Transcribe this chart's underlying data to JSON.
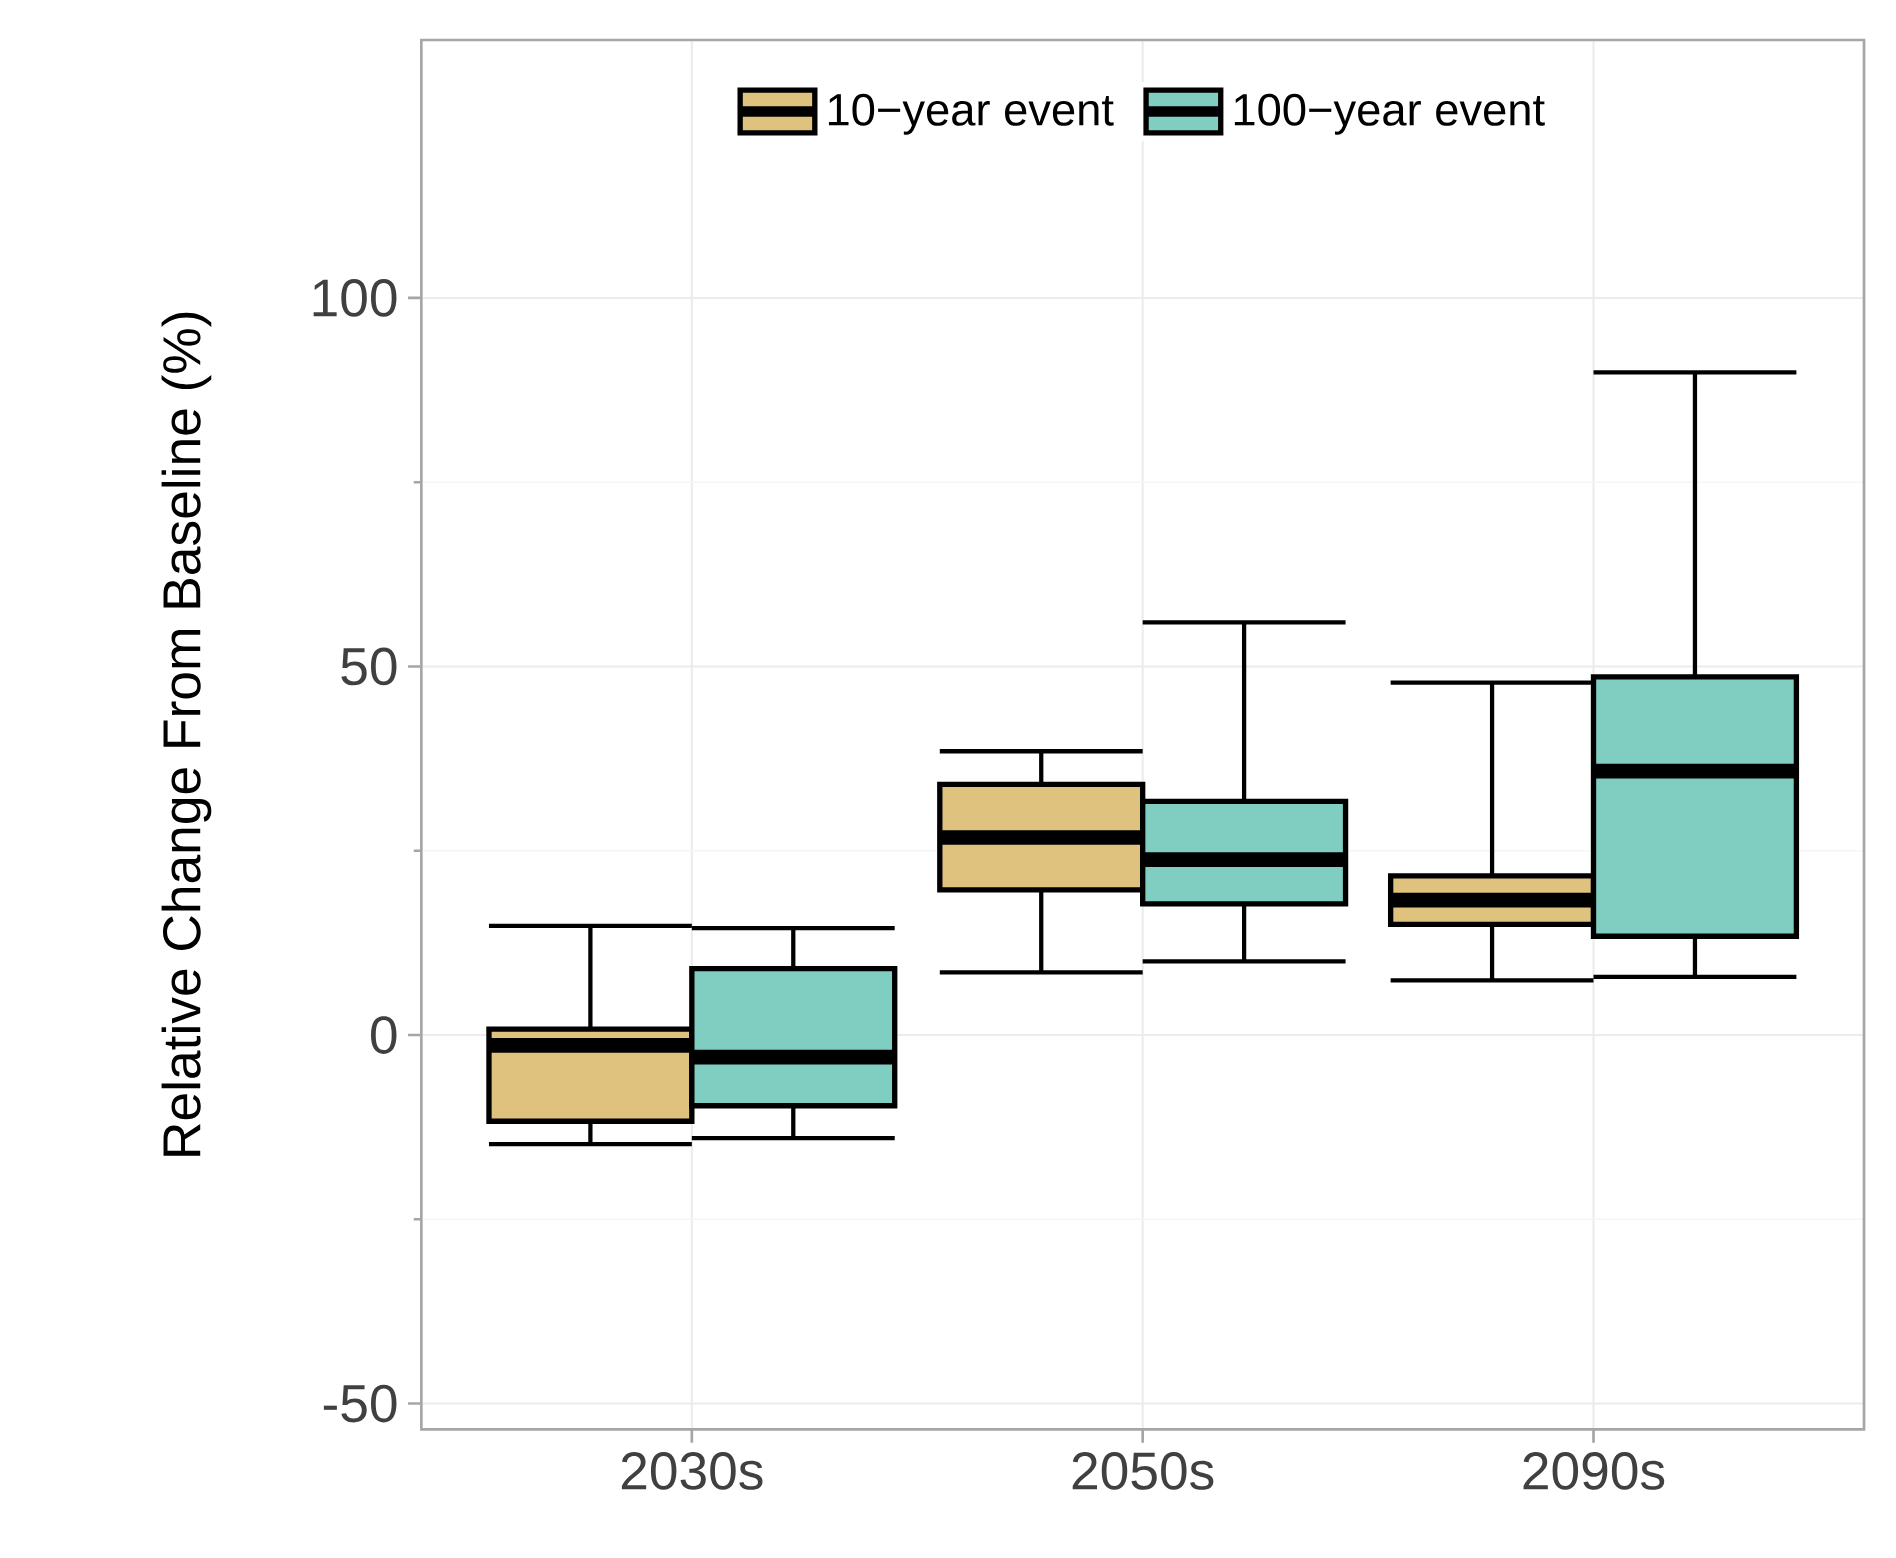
{
  "chart_data": {
    "type": "box",
    "ylabel": "Relative Change From Baseline (%)",
    "categories": [
      "2030s",
      "2050s",
      "2090s"
    ],
    "series": [
      {
        "name": "10−year event",
        "color": "#dfc27d",
        "boxes": [
          {
            "low": -14.8,
            "q1": -11.7,
            "median": -1.4,
            "q3": 0.8,
            "high": 14.8
          },
          {
            "low": 8.5,
            "q1": 19.7,
            "median": 26.8,
            "q3": 34,
            "high": 38.5
          },
          {
            "low": 7.4,
            "q1": 15,
            "median": 18.3,
            "q3": 21.6,
            "high": 47.8
          }
        ]
      },
      {
        "name": "100−year event",
        "color": "#80cdc1",
        "boxes": [
          {
            "low": -14,
            "q1": -9.6,
            "median": -3,
            "q3": 9,
            "high": 14.5
          },
          {
            "low": 10,
            "q1": 17.8,
            "median": 23.8,
            "q3": 31.7,
            "high": 56
          },
          {
            "low": 7.9,
            "q1": 13.4,
            "median": 35.8,
            "q3": 48.6,
            "high": 89.9
          }
        ]
      }
    ],
    "ylim": [
      -53.5,
      135
    ],
    "yticks": [
      -50,
      0,
      50,
      100
    ],
    "grid": true,
    "legend": "top"
  }
}
